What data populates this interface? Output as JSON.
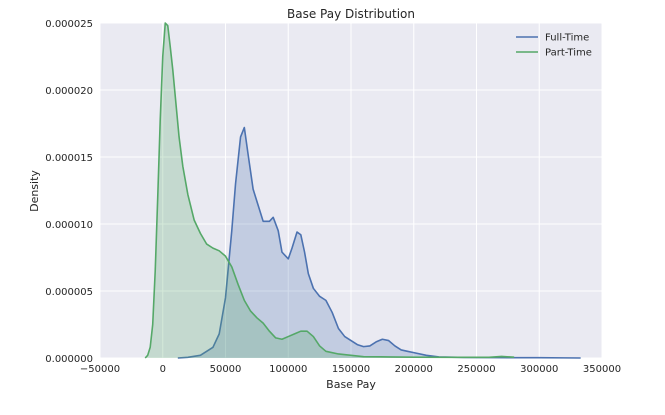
{
  "chart_data": {
    "type": "area",
    "title": "Base Pay Distribution",
    "xlabel": "Base Pay",
    "ylabel": "Density",
    "xlim": [
      -50000,
      350000
    ],
    "ylim": [
      0,
      2.5e-05
    ],
    "grid": true,
    "legend_position": "top-right",
    "x_ticks": [
      -50000,
      0,
      50000,
      100000,
      150000,
      200000,
      250000,
      300000,
      350000
    ],
    "x_tick_labels": [
      "−50000",
      "0",
      "50000",
      "100000",
      "150000",
      "200000",
      "250000",
      "300000",
      "350000"
    ],
    "y_ticks": [
      0,
      5e-06,
      1e-05,
      1.5e-05,
      2e-05,
      2.5e-05
    ],
    "y_tick_labels": [
      "0.000000",
      "0.000005",
      "0.000010",
      "0.000015",
      "0.000020",
      "0.000025"
    ],
    "series": [
      {
        "name": "Full-Time",
        "color": "#4c72b0",
        "fill": "#4c72b0",
        "x": [
          12000,
          20000,
          30000,
          40000,
          45000,
          50000,
          55000,
          58000,
          62000,
          65000,
          68000,
          72000,
          76000,
          80000,
          85000,
          88000,
          92000,
          95000,
          100000,
          103000,
          107000,
          110000,
          113000,
          116000,
          120000,
          125000,
          130000,
          135000,
          140000,
          145000,
          150000,
          155000,
          160000,
          165000,
          170000,
          175000,
          180000,
          185000,
          190000,
          195000,
          200000,
          210000,
          220000,
          240000,
          260000,
          280000,
          300000,
          320000,
          333000
        ],
        "y": [
          0.0,
          5e-08,
          2e-07,
          8e-07,
          1.8e-06,
          4.5e-06,
          9.5e-06,
          1.3e-05,
          1.65e-05,
          1.72e-05,
          1.52e-05,
          1.26e-05,
          1.14e-05,
          1.02e-05,
          1.02e-05,
          1.05e-05,
          9.5e-06,
          7.9e-06,
          7.4e-06,
          8.2e-06,
          9.4e-06,
          9.2e-06,
          7.9e-06,
          6.3e-06,
          5.2e-06,
          4.6e-06,
          4.3e-06,
          3.4e-06,
          2.2e-06,
          1.6e-06,
          1.3e-06,
          1e-06,
          8.5e-07,
          9e-07,
          1.2e-06,
          1.4e-06,
          1.3e-06,
          9e-07,
          6e-07,
          5e-07,
          4e-07,
          2e-07,
          8e-08,
          4e-08,
          3e-08,
          2e-08,
          2e-08,
          1e-08,
          0.0
        ]
      },
      {
        "name": "Part-Time",
        "color": "#55a868",
        "fill": "#55a868",
        "x": [
          -14000,
          -12000,
          -10000,
          -8000,
          -6000,
          -4000,
          -2000,
          0,
          2000,
          4000,
          6000,
          8000,
          10000,
          13000,
          16000,
          20000,
          25000,
          30000,
          35000,
          40000,
          45000,
          50000,
          55000,
          60000,
          65000,
          70000,
          75000,
          80000,
          85000,
          90000,
          95000,
          100000,
          105000,
          110000,
          115000,
          120000,
          125000,
          130000,
          140000,
          150000,
          160000,
          180000,
          200000,
          230000,
          260000,
          270000,
          280000
        ],
        "y": [
          0.0,
          2e-07,
          8e-07,
          2.5e-06,
          6.5e-06,
          1.2e-05,
          1.78e-05,
          2.25e-05,
          2.5e-05,
          2.48e-05,
          2.32e-05,
          2.15e-05,
          1.95e-05,
          1.65e-05,
          1.43e-05,
          1.22e-05,
          1.03e-05,
          9.3e-06,
          8.5e-06,
          8.2e-06,
          8e-06,
          7.6e-06,
          6.8e-06,
          5.5e-06,
          4.3e-06,
          3.5e-06,
          3e-06,
          2.6e-06,
          2e-06,
          1.5e-06,
          1.4e-06,
          1.6e-06,
          1.8e-06,
          2e-06,
          2e-06,
          1.6e-06,
          9e-07,
          5e-07,
          3e-07,
          2e-07,
          1e-07,
          8e-08,
          6e-08,
          5e-08,
          5e-08,
          1.2e-07,
          6e-08
        ]
      }
    ]
  }
}
